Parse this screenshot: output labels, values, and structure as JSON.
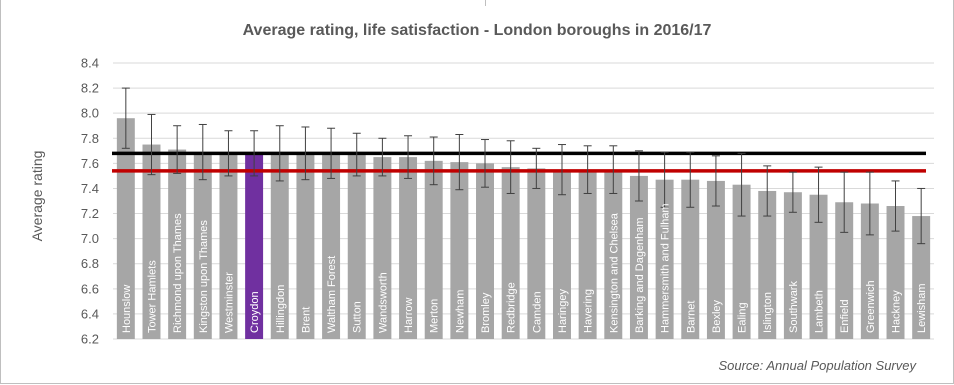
{
  "chart_data": {
    "type": "bar",
    "title": "Average rating, life satisfaction - London boroughs in 2016/17",
    "ylabel": "Average rating",
    "source": "Source: Annual Population Survey",
    "ylim": [
      6.2,
      8.4
    ],
    "yticks": [
      "8.4",
      "8.2",
      "8.0",
      "7.8",
      "7.6",
      "7.4",
      "7.2",
      "7.0",
      "6.8",
      "6.6",
      "6.4",
      "6.2"
    ],
    "categories": [
      "Hounslow",
      "Tower Hamlets",
      "Richmond upon Thames",
      "Kingston upon Thames",
      "Westminster",
      "Croydon",
      "Hillingdon",
      "Brent",
      "Waltham Forest",
      "Sutton",
      "Wandsworth",
      "Harrow",
      "Merton",
      "Newham",
      "Bromley",
      "Redbridge",
      "Camden",
      "Haringey",
      "Havering",
      "Kensington and Chelsea",
      "Barking and Dagenham",
      "Hammersmith and Fulham",
      "Barnet",
      "Bexley",
      "Ealing",
      "Islington",
      "Southwark",
      "Lambeth",
      "Enfield",
      "Greenwich",
      "Hackney",
      "Lewisham"
    ],
    "values": [
      7.96,
      7.75,
      7.71,
      7.69,
      7.68,
      7.68,
      7.68,
      7.68,
      7.68,
      7.67,
      7.65,
      7.65,
      7.62,
      7.61,
      7.6,
      7.57,
      7.56,
      7.55,
      7.55,
      7.55,
      7.5,
      7.47,
      7.47,
      7.46,
      7.43,
      7.38,
      7.37,
      7.35,
      7.29,
      7.28,
      7.26,
      7.18
    ],
    "error_upper": [
      8.2,
      7.99,
      7.9,
      7.91,
      7.86,
      7.86,
      7.9,
      7.89,
      7.88,
      7.84,
      7.8,
      7.82,
      7.81,
      7.83,
      7.79,
      7.78,
      7.72,
      7.75,
      7.74,
      7.74,
      7.7,
      7.69,
      7.69,
      7.66,
      7.68,
      7.58,
      7.53,
      7.57,
      7.53,
      7.53,
      7.46,
      7.4
    ],
    "error_lower": [
      7.72,
      7.51,
      7.52,
      7.47,
      7.5,
      7.5,
      7.46,
      7.47,
      7.48,
      7.5,
      7.5,
      7.48,
      7.43,
      7.39,
      7.41,
      7.36,
      7.4,
      7.35,
      7.36,
      7.36,
      7.3,
      7.25,
      7.25,
      7.26,
      7.18,
      7.18,
      7.21,
      7.13,
      7.05,
      7.03,
      7.06,
      6.96
    ],
    "highlight": "Croydon",
    "reference_lines": [
      {
        "value": 7.68,
        "color": "#000000"
      },
      {
        "value": 7.54,
        "color": "#c00000"
      }
    ],
    "colors": {
      "bar": "#a6a6a6",
      "highlight": "#7030a0",
      "grid": "#d9d9d9",
      "error": "#404040"
    },
    "grid": true,
    "legend": "none"
  }
}
